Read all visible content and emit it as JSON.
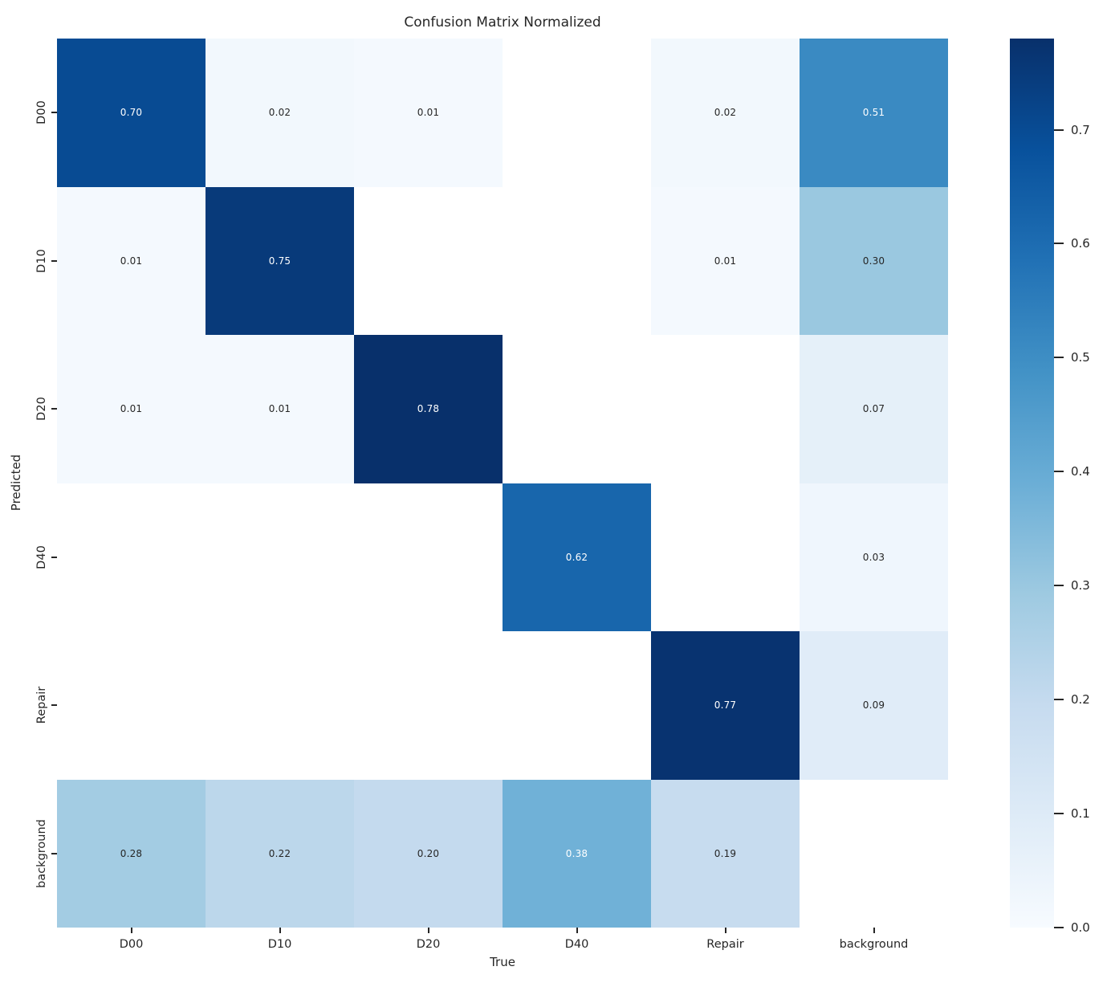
{
  "chart_data": {
    "type": "heatmap",
    "title": "Confusion Matrix Normalized",
    "xlabel": "True",
    "ylabel": "Predicted",
    "x_categories": [
      "D00",
      "D10",
      "D20",
      "D40",
      "Repair",
      "background"
    ],
    "y_categories": [
      "D00",
      "D10",
      "D20",
      "D40",
      "Repair",
      "background"
    ],
    "matrix": [
      [
        0.7,
        0.02,
        0.01,
        null,
        0.02,
        0.51
      ],
      [
        0.01,
        0.75,
        null,
        null,
        0.01,
        0.3
      ],
      [
        0.01,
        0.01,
        0.78,
        null,
        null,
        0.07
      ],
      [
        null,
        null,
        null,
        0.62,
        null,
        0.03
      ],
      [
        null,
        null,
        null,
        null,
        0.77,
        0.09
      ],
      [
        0.28,
        0.22,
        0.2,
        0.38,
        0.19,
        null
      ]
    ],
    "masked_cells_rendered_as": "white",
    "annotation_decimals": 2,
    "vmin": 0.0,
    "vmax": 0.78,
    "colormap": "Blues",
    "colormap_stops": [
      "#f7fbff",
      "#deebf7",
      "#c6dbef",
      "#9ecae1",
      "#6baed6",
      "#4292c6",
      "#2171b5",
      "#08519c",
      "#08306b"
    ],
    "masked_cell_color": "#ffffff",
    "annotation_light_text_color": "#ffffff",
    "annotation_dark_text_color": "#262626",
    "colorbar": {
      "position": "right",
      "ticks": [
        0.0,
        0.1,
        0.2,
        0.3,
        0.4,
        0.5,
        0.6,
        0.7
      ],
      "tick_decimals": 1
    },
    "legend": "none",
    "grid": false
  }
}
